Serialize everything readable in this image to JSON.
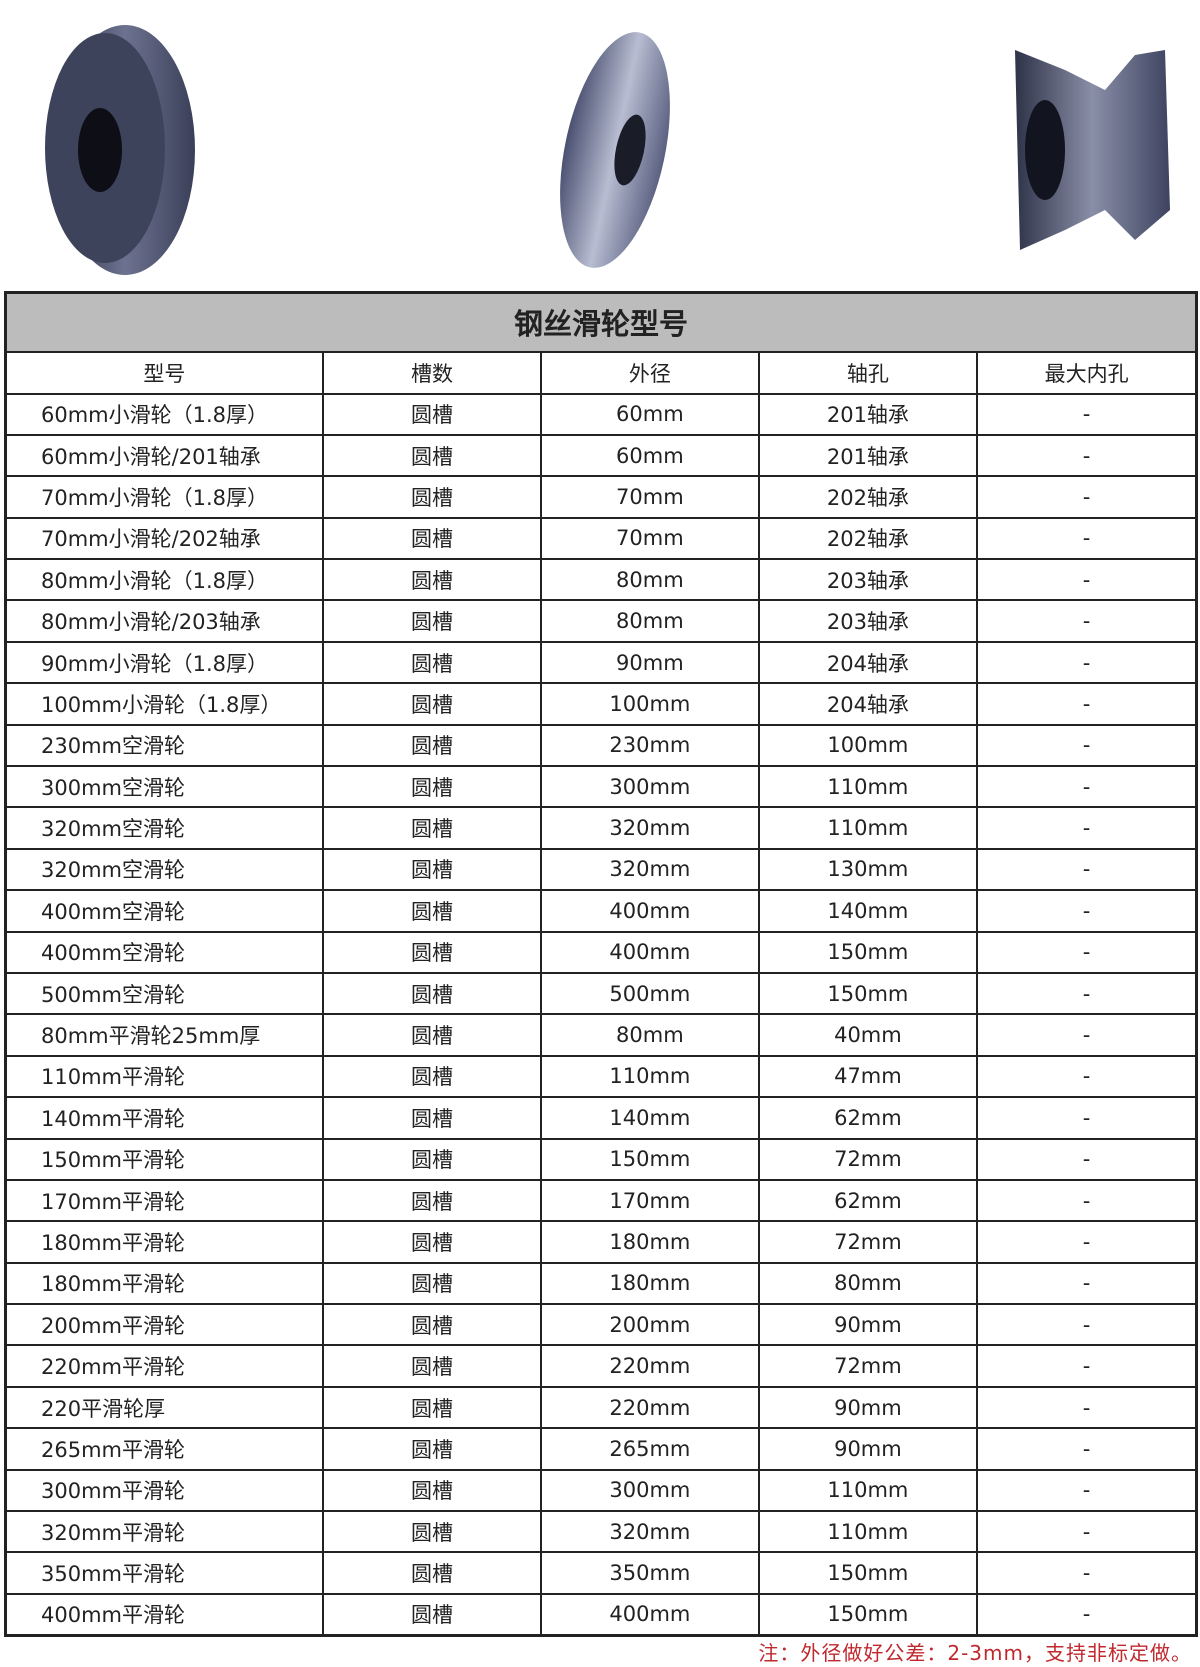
{
  "title": "钢丝滑轮型号",
  "columns": [
    "型号",
    "槽数",
    "外径",
    "轴孔",
    "最大内孔"
  ],
  "rows": [
    [
      "60mm小滑轮（1.8厚）",
      "圆槽",
      "60mm",
      "201轴承",
      "-"
    ],
    [
      "60mm小滑轮/201轴承",
      "圆槽",
      "60mm",
      "201轴承",
      "-"
    ],
    [
      "70mm小滑轮（1.8厚）",
      "圆槽",
      "70mm",
      "202轴承",
      "-"
    ],
    [
      "70mm小滑轮/202轴承",
      "圆槽",
      "70mm",
      "202轴承",
      "-"
    ],
    [
      "80mm小滑轮（1.8厚）",
      "圆槽",
      "80mm",
      "203轴承",
      "-"
    ],
    [
      "80mm小滑轮/203轴承",
      "圆槽",
      "80mm",
      "203轴承",
      "-"
    ],
    [
      "90mm小滑轮（1.8厚）",
      "圆槽",
      "90mm",
      "204轴承",
      "-"
    ],
    [
      "100mm小滑轮（1.8厚）",
      "圆槽",
      "100mm",
      "204轴承",
      "-"
    ],
    [
      "230mm空滑轮",
      "圆槽",
      "230mm",
      "100mm",
      "-"
    ],
    [
      "300mm空滑轮",
      "圆槽",
      "300mm",
      "110mm",
      "-"
    ],
    [
      "320mm空滑轮",
      "圆槽",
      "320mm",
      "110mm",
      "-"
    ],
    [
      "320mm空滑轮",
      "圆槽",
      "320mm",
      "130mm",
      "-"
    ],
    [
      "400mm空滑轮",
      "圆槽",
      "400mm",
      "140mm",
      "-"
    ],
    [
      "400mm空滑轮",
      "圆槽",
      "400mm",
      "150mm",
      "-"
    ],
    [
      "500mm空滑轮",
      "圆槽",
      "500mm",
      "150mm",
      "-"
    ],
    [
      "80mm平滑轮25mm厚",
      "圆槽",
      "80mm",
      "40mm",
      "-"
    ],
    [
      "110mm平滑轮",
      "圆槽",
      "110mm",
      "47mm",
      "-"
    ],
    [
      "140mm平滑轮",
      "圆槽",
      "140mm",
      "62mm",
      "-"
    ],
    [
      "150mm平滑轮",
      "圆槽",
      "150mm",
      "72mm",
      "-"
    ],
    [
      "170mm平滑轮",
      "圆槽",
      "170mm",
      "62mm",
      "-"
    ],
    [
      "180mm平滑轮",
      "圆槽",
      "180mm",
      "72mm",
      "-"
    ],
    [
      "180mm平滑轮",
      "圆槽",
      "180mm",
      "80mm",
      "-"
    ],
    [
      "200mm平滑轮",
      "圆槽",
      "200mm",
      "90mm",
      "-"
    ],
    [
      "220mm平滑轮",
      "圆槽",
      "220mm",
      "72mm",
      "-"
    ],
    [
      "220平滑轮厚",
      "圆槽",
      "220mm",
      "90mm",
      "-"
    ],
    [
      "265mm平滑轮",
      "圆槽",
      "265mm",
      "90mm",
      "-"
    ],
    [
      "300mm平滑轮",
      "圆槽",
      "300mm",
      "110mm",
      "-"
    ],
    [
      "320mm平滑轮",
      "圆槽",
      "320mm",
      "110mm",
      "-"
    ],
    [
      "350mm平滑轮",
      "圆槽",
      "350mm",
      "150mm",
      "-"
    ],
    [
      "400mm平滑轮",
      "圆槽",
      "400mm",
      "150mm",
      "-"
    ]
  ],
  "note": "注：外径做好公差：2-3mm，支持非标定做。",
  "colors": {
    "title_bg": "#bdbcbc",
    "note": "#c0282e"
  }
}
